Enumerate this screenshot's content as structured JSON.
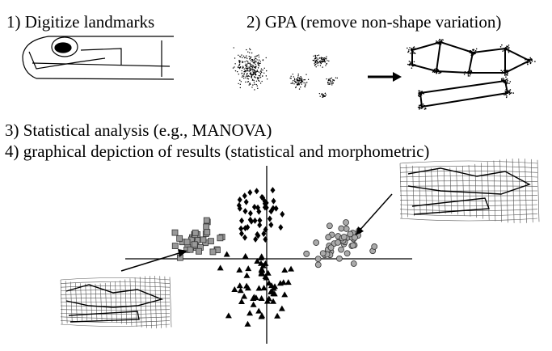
{
  "steps": {
    "step1": "1) Digitize landmarks",
    "step2": "2) GPA (remove non-shape variation)",
    "step3": "3) Statistical analysis (e.g., MANOVA)",
    "step4": "4) graphical depiction of results (statistical and morphometric)"
  }
}
